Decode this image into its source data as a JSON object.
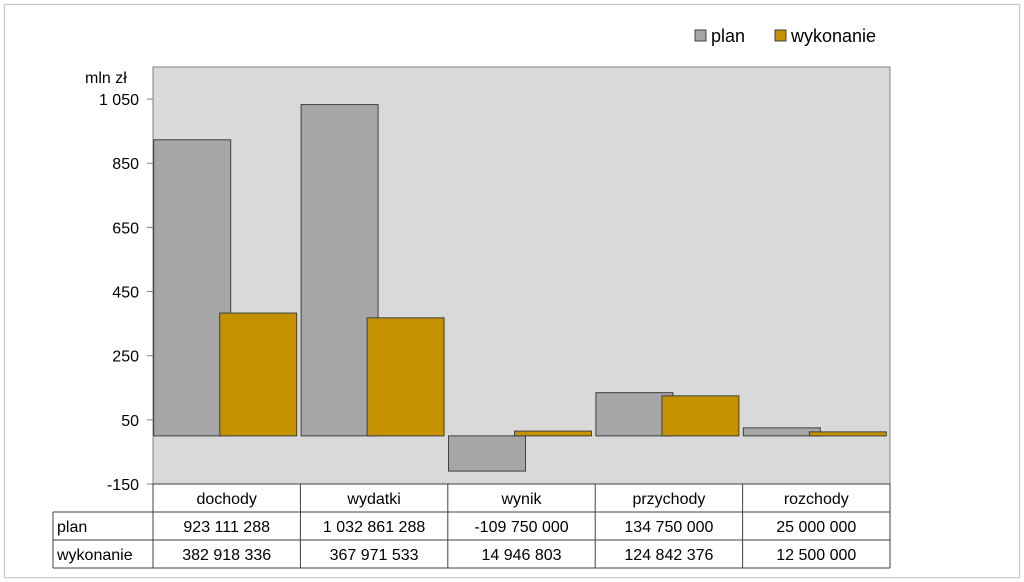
{
  "chart_data": {
    "type": "bar",
    "ylabel": "mln zł",
    "ylim": [
      -150,
      1150
    ],
    "yticks": [
      1050,
      850,
      650,
      450,
      250,
      50,
      -150
    ],
    "ytick_labels": [
      "1 050",
      "850",
      "650",
      "450",
      "250",
      "50",
      "-150"
    ],
    "categories": [
      "dochody",
      "wydatki",
      "wynik",
      "przychody",
      "rozchody"
    ],
    "legend_position": "top-right",
    "series": [
      {
        "name": "plan",
        "color": "#a6a6a6",
        "values": [
          923.111288,
          1032.861288,
          -109.75,
          134.75,
          25.0
        ],
        "table_values": [
          "923 111 288",
          "1 032 861 288",
          "-109 750 000",
          "134 750 000",
          "25 000 000"
        ]
      },
      {
        "name": "wykonanie",
        "color": "#c49200",
        "values": [
          382.918336,
          367.971533,
          14.946803,
          124.842376,
          12.5
        ],
        "table_values": [
          "382 918 336",
          "367 971 533",
          "14 946 803",
          "124 842 376",
          "12 500 000"
        ]
      }
    ],
    "plot_background": "#d9d9d9"
  }
}
